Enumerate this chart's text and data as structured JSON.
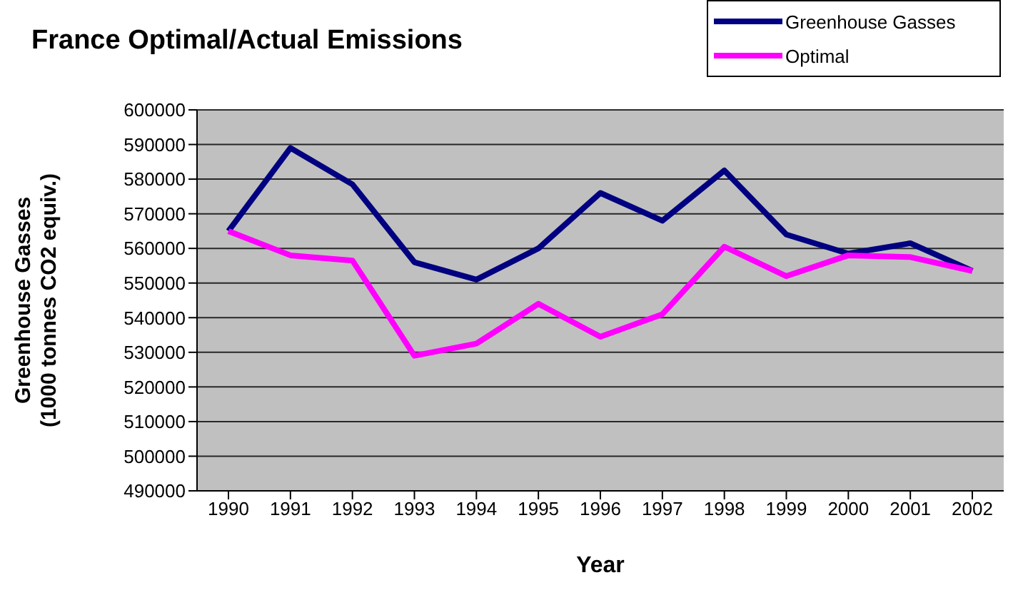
{
  "chart_data": {
    "type": "line",
    "title": "France Optimal/Actual Emissions",
    "xlabel": "Year",
    "ylabel": "Greenhouse Gasses\n(1000 tonnes CO2 equiv.)",
    "categories": [
      "1990",
      "1991",
      "1992",
      "1993",
      "1994",
      "1995",
      "1996",
      "1997",
      "1998",
      "1999",
      "2000",
      "2001",
      "2002"
    ],
    "series": [
      {
        "name": "Greenhouse Gasses",
        "color": "#000080",
        "values": [
          565000,
          589000,
          578500,
          556000,
          551000,
          560000,
          576000,
          568000,
          582500,
          564000,
          558500,
          561500,
          553500
        ]
      },
      {
        "name": "Optimal",
        "color": "#ff00ff",
        "values": [
          565000,
          558000,
          556500,
          529000,
          532500,
          544000,
          534500,
          541000,
          560500,
          552000,
          558000,
          557500,
          553500
        ]
      }
    ],
    "ylim": [
      490000,
      600000
    ],
    "yticks": [
      490000,
      500000,
      510000,
      520000,
      530000,
      540000,
      550000,
      560000,
      570000,
      580000,
      590000,
      600000
    ],
    "grid": "y",
    "legend": "top right",
    "marker": "none",
    "line_style": "solid"
  }
}
